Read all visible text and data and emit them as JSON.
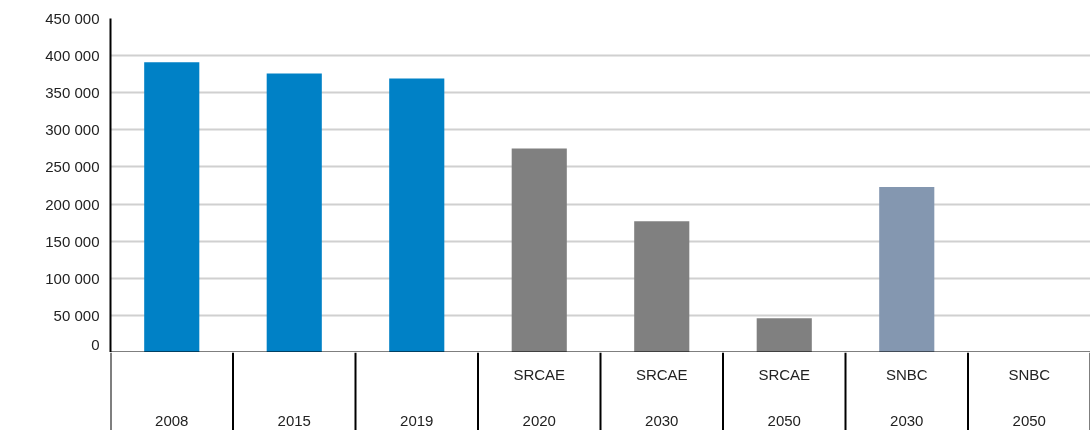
{
  "chart_data": {
    "type": "bar",
    "categories": [
      "2008",
      "2015",
      "2019",
      "SRCAE 2020",
      "SRCAE 2030",
      "SRCAE 2050",
      "SNBC 2030",
      "SNBC 2050"
    ],
    "values": [
      391000,
      376000,
      369000,
      275000,
      177000,
      46000,
      223000,
      0
    ],
    "colors": [
      "#0081c6",
      "#0081c6",
      "#0081c6",
      "#808080",
      "#808080",
      "#808080",
      "#8497b0",
      "#8497b0"
    ],
    "ylim": [
      0,
      450000
    ],
    "yticks": [
      {
        "value": 0,
        "label": "0"
      },
      {
        "value": 50000,
        "label": "50 000"
      },
      {
        "value": 100000,
        "label": "100 000"
      },
      {
        "value": 150000,
        "label": "150 000"
      },
      {
        "value": 200000,
        "label": "200 000"
      },
      {
        "value": 250000,
        "label": "250 000"
      },
      {
        "value": 300000,
        "label": "300 000"
      },
      {
        "value": 350000,
        "label": "350 000"
      },
      {
        "value": 400000,
        "label": "400 000"
      },
      {
        "value": 450000,
        "label": "450 000"
      }
    ],
    "grid": "y"
  }
}
